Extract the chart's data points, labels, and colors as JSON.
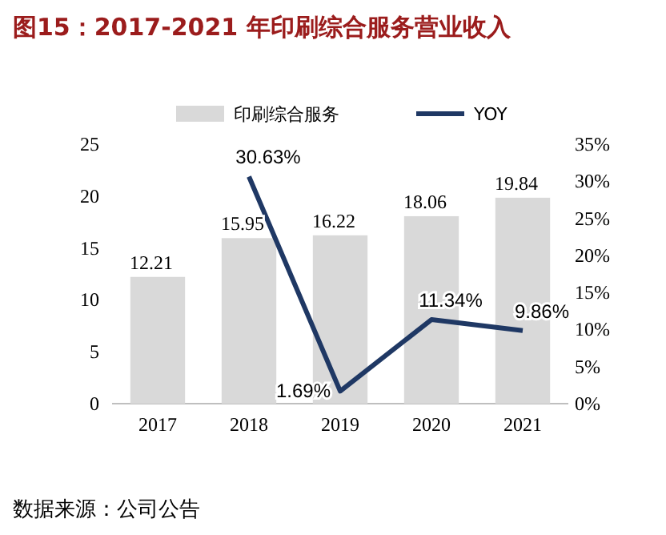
{
  "chart_data": {
    "type": "bar",
    "title": "图15：2017-2021 年印刷综合服务营业收入",
    "categories": [
      "2017",
      "2018",
      "2019",
      "2020",
      "2021"
    ],
    "series": [
      {
        "name": "印刷综合服务",
        "color": "#d9d9d9",
        "values": [
          12.21,
          15.95,
          16.22,
          18.06,
          19.84
        ],
        "value_labels": [
          "12.21",
          "15.95",
          "16.22",
          "18.06",
          "19.84"
        ]
      },
      {
        "name": "YOY",
        "type": "line",
        "axis": "y2",
        "color": "#1f3864",
        "values": [
          null,
          30.63,
          1.69,
          11.34,
          9.86
        ],
        "value_labels": [
          null,
          "30.63%",
          "1.69%",
          "11.34%",
          "9.86%"
        ]
      }
    ],
    "ylim": [
      0,
      25
    ],
    "yticks": [
      0,
      5,
      10,
      15,
      20,
      25
    ],
    "y2lim": [
      0,
      35
    ],
    "y2ticks": [
      {
        "value": 0,
        "label": "0%"
      },
      {
        "value": 5,
        "label": "5%"
      },
      {
        "value": 10,
        "label": "10%"
      },
      {
        "value": 15,
        "label": "15%"
      },
      {
        "value": 20,
        "label": "20%"
      },
      {
        "value": 25,
        "label": "25%"
      },
      {
        "value": 30,
        "label": "30%"
      },
      {
        "value": 35,
        "label": "35%"
      }
    ],
    "legend": "top",
    "grid": false,
    "marker": "none",
    "annotations": [
      "数据来源：公司公告"
    ]
  }
}
